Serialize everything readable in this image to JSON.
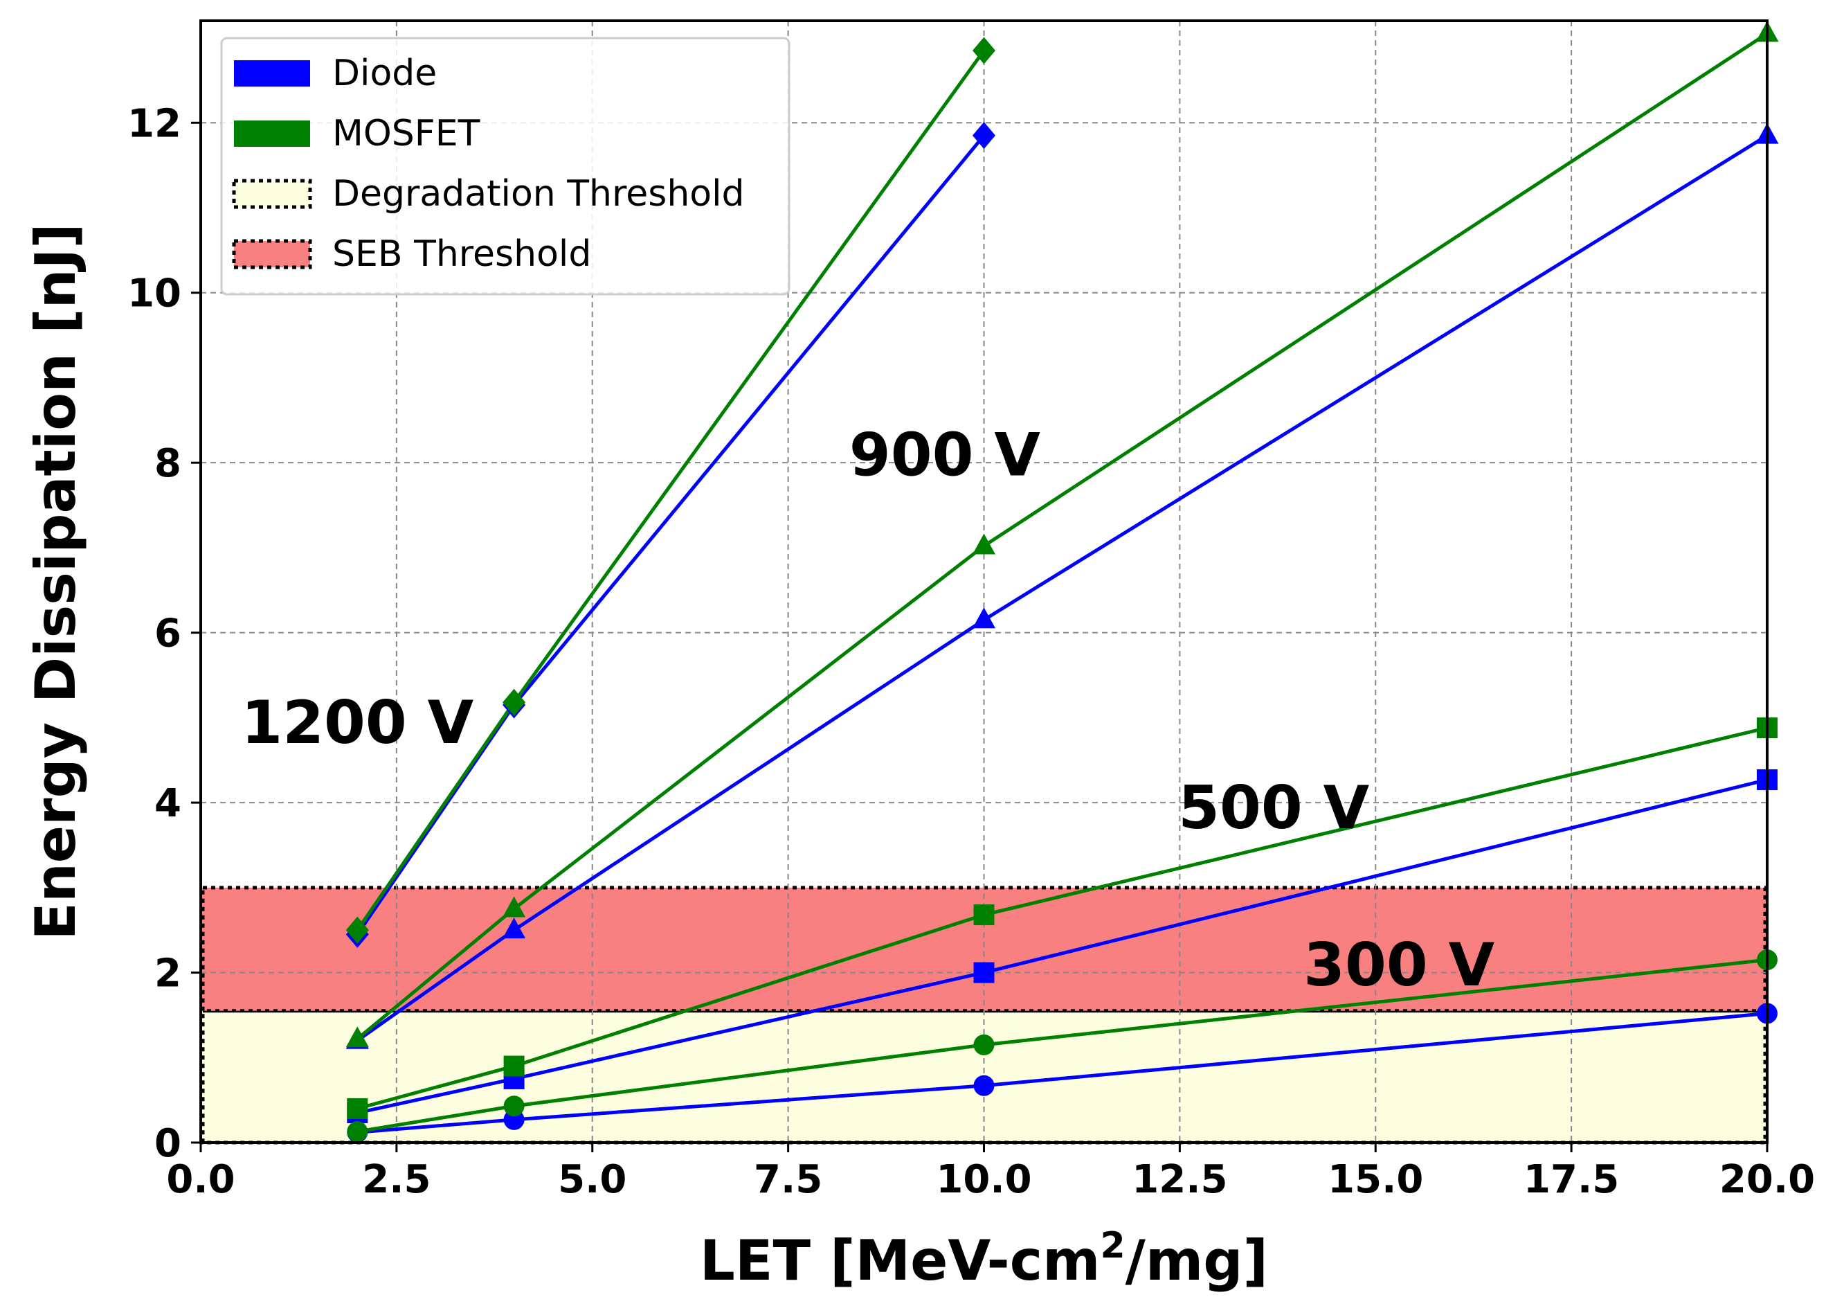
{
  "chart_data": {
    "type": "line",
    "title": "",
    "xlabel": "LET [MeV-cm",
    "xlabel_sup": "2",
    "xlabel_tail": "/mg]",
    "ylabel": "Energy Dissipation [nJ]",
    "xlim": [
      0,
      20
    ],
    "ylim": [
      0,
      13.2
    ],
    "xticks": [
      0,
      2.5,
      5,
      7.5,
      10,
      12.5,
      15,
      17.5,
      20
    ],
    "xtick_labels": [
      "0.0",
      "2.5",
      "5.0",
      "7.5",
      "10.0",
      "12.5",
      "15.0",
      "17.5",
      "20.0"
    ],
    "yticks": [
      0,
      2,
      4,
      6,
      8,
      10,
      12
    ],
    "ytick_labels": [
      "0",
      "2",
      "4",
      "6",
      "8",
      "10",
      "12"
    ],
    "grid": true,
    "bands": [
      {
        "name": "Degradation Threshold",
        "y0": 0,
        "y1": 1.55,
        "color": "#fdfde0"
      },
      {
        "name": "SEB Threshold",
        "y0": 1.55,
        "y1": 3.0,
        "color": "#f98080"
      }
    ],
    "legend": {
      "placement": "top-left",
      "entries": [
        {
          "label": "Diode",
          "kind": "patch",
          "color": "#0000ff"
        },
        {
          "label": "MOSFET",
          "kind": "patch",
          "color": "#008000"
        },
        {
          "label": "Degradation Threshold",
          "kind": "band",
          "color": "#fdfde0"
        },
        {
          "label": "SEB Threshold",
          "kind": "band",
          "color": "#f98080"
        }
      ]
    },
    "series": [
      {
        "name": "Diode 1200 V",
        "device": "Diode",
        "voltage": "1200 V",
        "color": "#0000ff",
        "marker": "diamond",
        "x": [
          2,
          4,
          10
        ],
        "y": [
          2.45,
          5.15,
          11.85
        ]
      },
      {
        "name": "MOSFET 1200 V",
        "device": "MOSFET",
        "voltage": "1200 V",
        "color": "#008000",
        "marker": "diamond",
        "x": [
          2,
          4,
          10
        ],
        "y": [
          2.5,
          5.18,
          12.85
        ]
      },
      {
        "name": "Diode 900 V",
        "device": "Diode",
        "voltage": "900 V",
        "color": "#0000ff",
        "marker": "triangle",
        "x": [
          2,
          4,
          10,
          20
        ],
        "y": [
          1.2,
          2.5,
          6.15,
          11.85
        ]
      },
      {
        "name": "MOSFET 900 V",
        "device": "MOSFET",
        "voltage": "900 V",
        "color": "#008000",
        "marker": "triangle",
        "x": [
          2,
          4,
          10,
          20
        ],
        "y": [
          1.22,
          2.75,
          7.02,
          13.05
        ]
      },
      {
        "name": "Diode 500 V",
        "device": "Diode",
        "voltage": "500 V",
        "color": "#0000ff",
        "marker": "square",
        "x": [
          2,
          4,
          10,
          20
        ],
        "y": [
          0.35,
          0.75,
          2.0,
          4.27
        ]
      },
      {
        "name": "MOSFET 500 V",
        "device": "MOSFET",
        "voltage": "500 V",
        "color": "#008000",
        "marker": "square",
        "x": [
          2,
          4,
          10,
          20
        ],
        "y": [
          0.4,
          0.9,
          2.68,
          4.88
        ]
      },
      {
        "name": "Diode 300 V",
        "device": "Diode",
        "voltage": "300 V",
        "color": "#0000ff",
        "marker": "circle",
        "x": [
          2,
          4,
          10,
          20
        ],
        "y": [
          0.12,
          0.27,
          0.67,
          1.52
        ]
      },
      {
        "name": "MOSFET 300 V",
        "device": "MOSFET",
        "voltage": "300 V",
        "color": "#008000",
        "marker": "circle",
        "x": [
          2,
          4,
          10,
          20
        ],
        "y": [
          0.13,
          0.43,
          1.15,
          2.15
        ]
      }
    ],
    "annotations": [
      {
        "text": "1200 V",
        "x": 2.0,
        "y": 4.7
      },
      {
        "text": "900 V",
        "x": 9.5,
        "y": 7.85
      },
      {
        "text": "500 V",
        "x": 13.7,
        "y": 3.7
      },
      {
        "text": "300 V",
        "x": 15.3,
        "y": 1.85
      }
    ]
  }
}
